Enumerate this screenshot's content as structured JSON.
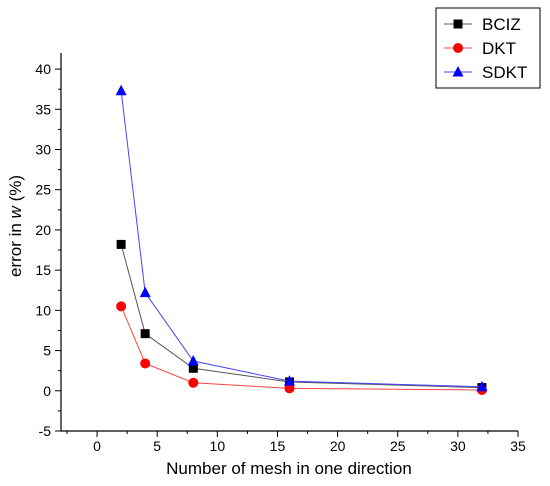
{
  "chart_data": {
    "type": "line",
    "xlabel": "Number of mesh in one direction",
    "ylabel_prefix": "error in ",
    "ylabel_var": "w",
    "ylabel_suffix": " (%)",
    "xlim": [
      -3,
      35
    ],
    "ylim": [
      -5,
      42
    ],
    "xticks": [
      0,
      5,
      10,
      15,
      20,
      25,
      30,
      35
    ],
    "yticks": [
      -5,
      0,
      5,
      10,
      15,
      20,
      25,
      30,
      35,
      40
    ],
    "grid": false,
    "legend_position": "top-right",
    "x": [
      2,
      4,
      8,
      16,
      32
    ],
    "series": [
      {
        "name": "BCIZ",
        "marker": "square",
        "color": "#000000",
        "line_color": "#555555",
        "values": [
          18.2,
          7.1,
          2.8,
          1.1,
          0.4
        ]
      },
      {
        "name": "DKT",
        "marker": "circle",
        "color": "#ff0000",
        "line_color": "#ff4444",
        "values": [
          10.5,
          3.4,
          1.0,
          0.3,
          0.1
        ]
      },
      {
        "name": "SDKT",
        "marker": "triangle",
        "color": "#0000ff",
        "line_color": "#4444ff",
        "values": [
          37.3,
          12.2,
          3.7,
          1.2,
          0.5
        ]
      }
    ]
  }
}
